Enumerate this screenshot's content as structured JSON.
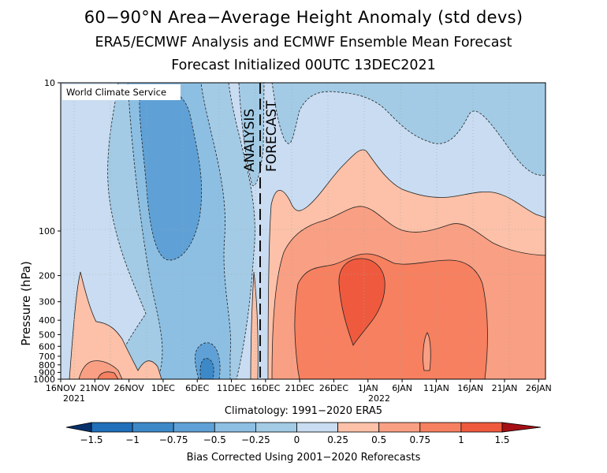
{
  "title": "60−90°N Area−Average Height Anomaly (std devs)",
  "subtitle": "ERA5/ECMWF Analysis and ECMWF Ensemble Mean Forecast",
  "forecast_line": "Forecast Initialized 00UTC 13DEC2021",
  "watermark": "World Climate Service",
  "analysis_label": "ANALYSIS",
  "forecast_label": "FORECAST",
  "climatology_note": "Climatology: 1991−2020 ERA5",
  "bias_note": "Bias Corrected Using 2001−2020 Reforecasts",
  "colors": {
    "neg_1_5": "#1f6fba",
    "neg_1": "#3d89c8",
    "neg_0_75": "#5fa1d6",
    "neg_0_5": "#8dbfe3",
    "neg_0_25": "#a3cbe5",
    "neg_0": "#c9dcf1",
    "pos_0": "#fcc1a8",
    "pos_0_25": "#f99f83",
    "pos_0_5": "#f6805f",
    "pos_0_75": "#ef5a3e",
    "pos_1": "#d8302a",
    "pos_1_5": "#a50f15"
  },
  "chart_data": {
    "type": "heatmap",
    "title": "60−90°N Area−Average Height Anomaly (std devs)",
    "ylabel": "Pressure (hPa)",
    "y_scale": "log",
    "y_ticks": [
      10,
      100,
      200,
      300,
      400,
      500,
      600,
      700,
      800,
      900,
      1000
    ],
    "ylim": [
      1000,
      10
    ],
    "x_ticks": [
      "16NOV\n2021",
      "21NOV",
      "26NOV",
      "1DEC",
      "6DEC",
      "11DEC",
      "16DEC",
      "21DEC",
      "26DEC",
      "1JAN\n2022",
      "6JAN",
      "11JAN",
      "16JAN",
      "21JAN",
      "26JAN"
    ],
    "xlim_days": [
      0,
      71
    ],
    "analysis_forecast_split_day": 27,
    "colorbar_levels": [
      -1.5,
      -1,
      -0.75,
      -0.5,
      -0.25,
      0,
      0.25,
      0.5,
      0.75,
      1,
      1.5
    ],
    "colorbar_labels": [
      "−1.5",
      "−1",
      "−0.75",
      "−0.5",
      "−0.25",
      "0",
      "0.25",
      "0.5",
      "0.75",
      "1",
      "1.5"
    ],
    "regions": [
      {
        "level": "-0.25 to 0",
        "desc": "background negative anomaly, most of analysis period and forecast upper levels"
      },
      {
        "level": "-0.5 to -0.25",
        "desc": "tropospheric/stratospheric column 26NOV−11DEC; upper stratosphere forecast"
      },
      {
        "level": "-0.75 to -0.5",
        "desc": "core near 1DEC−6DEC, 10−150 hPa and near surface 6DEC"
      },
      {
        "level": "0 to 0.25",
        "desc": "forecast 16DEC−26JAN, 30−1000 hPa; analysis near surface 16NOV−26NOV"
      },
      {
        "level": "0.25 to 0.5",
        "desc": "forecast 18DEC−26JAN, 80−1000 hPa"
      },
      {
        "level": "0.5 to 0.75",
        "desc": "forecast 20DEC−16JAN, 150−1000 hPa"
      },
      {
        "level": "0.75 to 1",
        "desc": "maximum near 26DEC−1JAN, 150−600 hPa"
      }
    ]
  },
  "x_tick_labels": [
    "16NOV",
    "21NOV",
    "26NOV",
    "1DEC",
    "6DEC",
    "11DEC",
    "16DEC",
    "21DEC",
    "26DEC",
    "1JAN",
    "6JAN",
    "11JAN",
    "16JAN",
    "21JAN",
    "26JAN"
  ],
  "x_tick_sublabels": {
    "year1": "2021",
    "year2": "2022"
  },
  "y_tick_labels": [
    "10",
    "100",
    "200",
    "300",
    "400",
    "500",
    "600",
    "700",
    "800",
    "900",
    "1000"
  ],
  "colorbar_labels": [
    "−1.5",
    "−1",
    "−0.75",
    "−0.5",
    "−0.25",
    "0",
    "0.25",
    "0.5",
    "0.75",
    "1",
    "1.5"
  ]
}
